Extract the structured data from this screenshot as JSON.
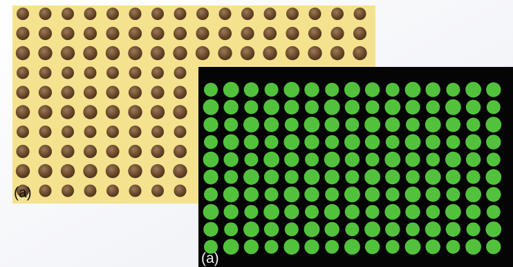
{
  "panels": [
    {
      "label": "(a)"
    },
    {
      "label": "(a)"
    }
  ]
}
